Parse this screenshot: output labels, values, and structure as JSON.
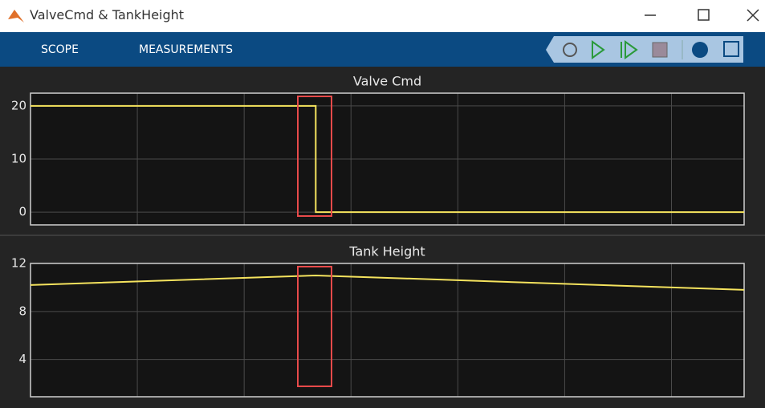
{
  "window": {
    "title": "ValveCmd &  TankHeight"
  },
  "tabs": [
    "SCOPE",
    "MEASUREMENTS"
  ],
  "chart_data": [
    {
      "type": "line",
      "title": "Valve Cmd",
      "x": [
        0,
        2.67,
        2.67,
        6.68
      ],
      "series": [
        {
          "name": "ValveCmd",
          "color": "#f5e35e",
          "values": [
            20,
            20,
            0,
            0
          ]
        }
      ],
      "xlim": [
        0,
        6.68
      ],
      "xticks": [
        0,
        1,
        2,
        3,
        4,
        5,
        6
      ],
      "ylim": [
        -2.4,
        22.4
      ],
      "yticks": [
        0,
        10,
        20
      ],
      "grid": true
    },
    {
      "type": "line",
      "title": "Tank Height",
      "x": [
        0,
        2.67,
        6.68
      ],
      "series": [
        {
          "name": "TankHeight",
          "color": "#f5e35e",
          "values": [
            10.2,
            11.0,
            9.8
          ]
        }
      ],
      "xlim": [
        0,
        6.68
      ],
      "xticks": [
        0,
        1,
        2,
        3,
        4,
        5,
        6
      ],
      "ylim": [
        0.9,
        12
      ],
      "yticks": [
        4,
        8,
        12
      ],
      "grid": true
    }
  ]
}
